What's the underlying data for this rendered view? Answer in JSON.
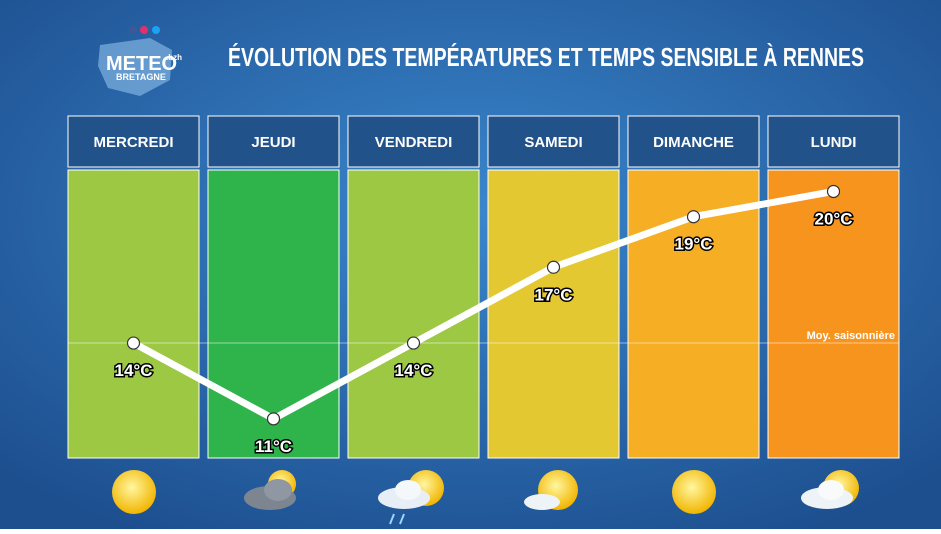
{
  "brand": {
    "name": "METEO",
    "suffix": ".bzh",
    "region": "BRETAGNE"
  },
  "chart_data": {
    "type": "line",
    "title": "ÉVOLUTION DES TEMPÉRATURES ET TEMPS SENSIBLE À RENNES",
    "categories": [
      "MERCREDI",
      "JEUDI",
      "VENDREDI",
      "SAMEDI",
      "DIMANCHE",
      "LUNDI"
    ],
    "values": [
      14,
      11,
      14,
      17,
      19,
      20
    ],
    "value_labels": [
      "14°C",
      "11°C",
      "14°C",
      "17°C",
      "19°C",
      "20°C"
    ],
    "color": "#ffffff",
    "column_colors": [
      "#9cc843",
      "#2eb44b",
      "#9cc843",
      "#e3c832",
      "#f6ae24",
      "#f7941d"
    ],
    "ylim": [
      9.45,
      20.85
    ],
    "seasonal_average": {
      "value": 14,
      "label": "Moy. saisonnière"
    }
  }
}
